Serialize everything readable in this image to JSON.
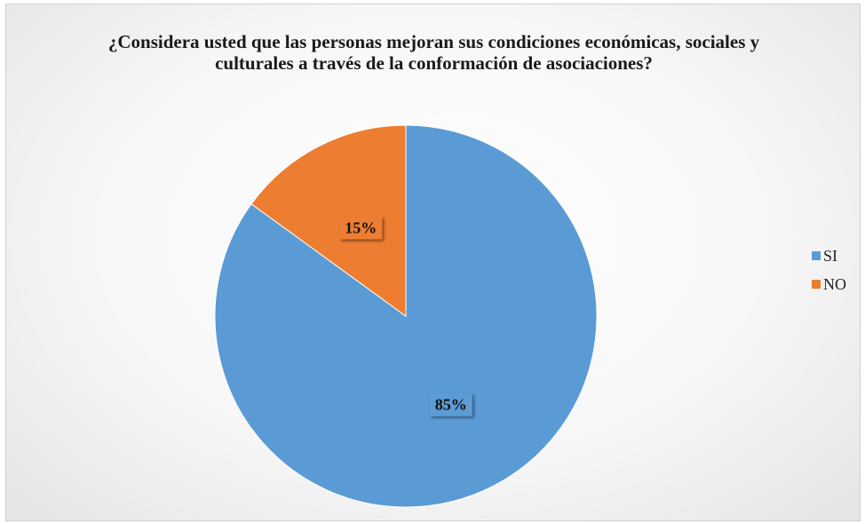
{
  "chart_data": {
    "type": "pie",
    "title": "¿Considera usted que las personas mejoran sus condiciones económicas, sociales y culturales a través de la conformación de asociaciones?",
    "categories": [
      "SI",
      "NO"
    ],
    "values": [
      85,
      15
    ],
    "labels": [
      "85%",
      "15%"
    ],
    "colors": [
      "#5b9bd5",
      "#ed7d31"
    ],
    "legend_position": "right"
  }
}
